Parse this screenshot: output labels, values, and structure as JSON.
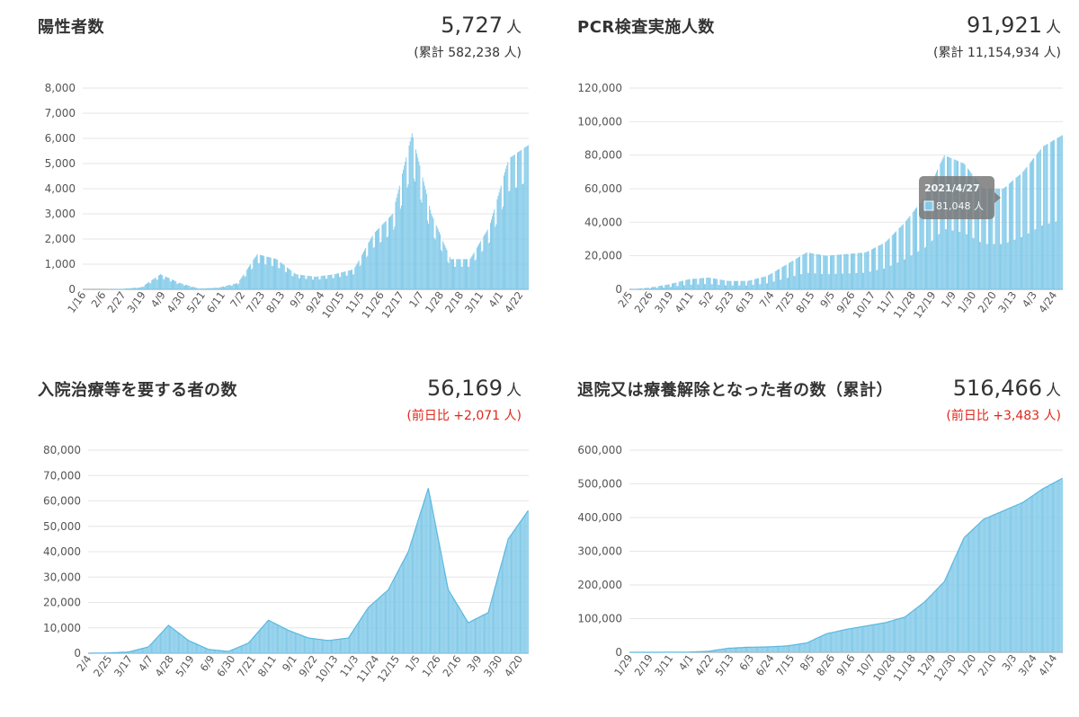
{
  "panels": [
    {
      "title": "陽性者数",
      "value": "5,727",
      "unit": "人",
      "sub": "(累計 582,238 人)",
      "sub_color": "#333333"
    },
    {
      "title": "PCR検査実施人数",
      "value": "91,921",
      "unit": "人",
      "sub": "(累計 11,154,934 人)",
      "sub_color": "#333333",
      "tooltip": {
        "date": "2021/4/27",
        "value": "81,048 人"
      }
    },
    {
      "title": "入院治療等を要する者の数",
      "value": "56,169",
      "unit": "人",
      "sub": "(前日比 +2,071 人)",
      "sub_color": "#e0261b"
    },
    {
      "title": "退院又は療養解除となった者の数（累計）",
      "value": "516,466",
      "unit": "人",
      "sub": "(前日比 +3,483 人)",
      "sub_color": "#e0261b"
    }
  ],
  "colors": {
    "bar": "#7ec8e8",
    "bar_edge": "#5bb8e0",
    "grid": "#e6e6e6",
    "axis": "#999999",
    "tooltip_bg": "#7a7a7a"
  },
  "chart_data": [
    {
      "type": "bar",
      "xticks": [
        "1/16",
        "2/6",
        "2/27",
        "3/19",
        "4/9",
        "4/30",
        "5/21",
        "6/11",
        "7/2",
        "7/23",
        "8/13",
        "9/3",
        "9/24",
        "10/15",
        "11/5",
        "11/26",
        "12/17",
        "1/7",
        "1/28",
        "2/18",
        "3/11",
        "4/1",
        "4/22"
      ],
      "yticks": [
        "0",
        "1,000",
        "2,000",
        "3,000",
        "4,000",
        "5,000",
        "6,000",
        "7,000",
        "8,000"
      ],
      "ylim": [
        0,
        8000
      ],
      "x": [
        "1/16",
        "2/6",
        "2/27",
        "3/19",
        "4/9",
        "4/30",
        "5/21",
        "6/11",
        "7/2",
        "7/23",
        "8/13",
        "9/3",
        "9/24",
        "10/15",
        "11/5",
        "11/26",
        "12/17",
        "1/7",
        "1/28",
        "2/18",
        "3/11",
        "4/1",
        "4/22",
        "4/27"
      ],
      "values": [
        0,
        5,
        20,
        80,
        600,
        250,
        30,
        70,
        250,
        1400,
        1200,
        600,
        500,
        600,
        800,
        2200,
        3000,
        6200,
        3000,
        1200,
        1200,
        2500,
        5200,
        5727
      ]
    },
    {
      "type": "bar",
      "xticks": [
        "2/5",
        "2/26",
        "3/19",
        "4/11",
        "5/2",
        "5/23",
        "6/13",
        "7/4",
        "7/25",
        "8/15",
        "9/5",
        "9/26",
        "10/17",
        "11/7",
        "11/28",
        "12/19",
        "1/9",
        "1/30",
        "2/20",
        "3/13",
        "4/3",
        "4/24"
      ],
      "yticks": [
        "0",
        "20,000",
        "40,000",
        "60,000",
        "80,000",
        "100,000",
        "120,000"
      ],
      "ylim": [
        0,
        120000
      ],
      "x": [
        "2/5",
        "2/26",
        "3/19",
        "4/11",
        "5/2",
        "5/23",
        "6/13",
        "7/4",
        "7/25",
        "8/15",
        "9/5",
        "9/26",
        "10/17",
        "11/7",
        "11/28",
        "12/19",
        "1/9",
        "1/30",
        "2/20",
        "3/13",
        "4/3",
        "4/24",
        "4/27"
      ],
      "values": [
        0,
        1000,
        3000,
        6000,
        7000,
        5000,
        5000,
        8000,
        15000,
        22000,
        20000,
        21000,
        22000,
        28000,
        40000,
        55000,
        80000,
        75000,
        60000,
        60000,
        70000,
        85000,
        91921
      ]
    },
    {
      "type": "area",
      "xticks": [
        "2/4",
        "2/25",
        "3/17",
        "4/7",
        "4/28",
        "5/19",
        "6/9",
        "6/30",
        "7/21",
        "8/11",
        "9/1",
        "9/22",
        "10/13",
        "11/3",
        "11/24",
        "12/15",
        "1/5",
        "1/26",
        "2/16",
        "3/9",
        "3/30",
        "4/20"
      ],
      "yticks": [
        "0",
        "10,000",
        "20,000",
        "30,000",
        "40,000",
        "50,000",
        "60,000",
        "70,000",
        "80,000"
      ],
      "ylim": [
        0,
        80000
      ],
      "x": [
        "2/4",
        "2/25",
        "3/17",
        "4/7",
        "4/28",
        "5/19",
        "6/9",
        "6/30",
        "7/21",
        "8/11",
        "9/1",
        "9/22",
        "10/13",
        "11/3",
        "11/24",
        "12/15",
        "1/5",
        "1/26",
        "2/16",
        "3/9",
        "3/30",
        "4/20",
        "4/27"
      ],
      "values": [
        0,
        100,
        500,
        2500,
        11000,
        5000,
        1500,
        700,
        4000,
        13000,
        9000,
        6000,
        5000,
        6000,
        18000,
        25000,
        40000,
        65000,
        25000,
        12000,
        16000,
        45000,
        56169
      ]
    },
    {
      "type": "area",
      "xticks": [
        "1/29",
        "2/19",
        "3/11",
        "4/1",
        "4/22",
        "5/13",
        "6/3",
        "6/24",
        "7/15",
        "8/5",
        "8/26",
        "9/16",
        "10/7",
        "10/28",
        "11/18",
        "12/9",
        "12/30",
        "1/20",
        "2/10",
        "3/3",
        "3/24",
        "4/14"
      ],
      "yticks": [
        "0",
        "100,000",
        "200,000",
        "300,000",
        "400,000",
        "500,000",
        "600,000"
      ],
      "ylim": [
        0,
        600000
      ],
      "x": [
        "1/29",
        "2/19",
        "3/11",
        "4/1",
        "4/22",
        "5/13",
        "6/3",
        "6/24",
        "7/15",
        "8/5",
        "8/26",
        "9/16",
        "10/7",
        "10/28",
        "11/18",
        "12/9",
        "12/30",
        "1/20",
        "2/10",
        "3/3",
        "3/24",
        "4/14",
        "4/27"
      ],
      "values": [
        0,
        0,
        200,
        600,
        3000,
        12000,
        15000,
        16000,
        19000,
        28000,
        55000,
        68000,
        78000,
        88000,
        105000,
        150000,
        210000,
        340000,
        395000,
        420000,
        445000,
        485000,
        516466
      ]
    }
  ]
}
